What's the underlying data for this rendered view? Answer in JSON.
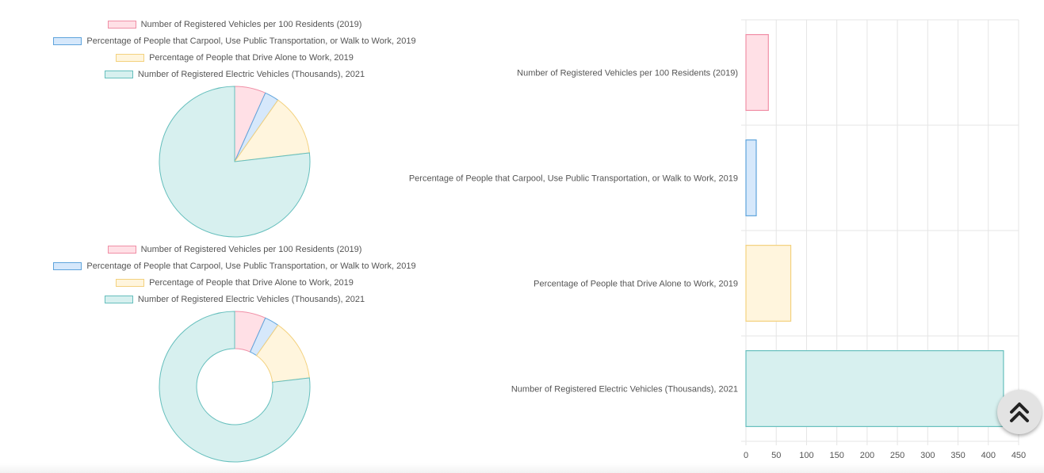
{
  "colors": {
    "series_fill": [
      "#ffe0e6",
      "#d6e8fb",
      "#fff5dd",
      "#d7f0ef"
    ],
    "series_border": [
      "#f08fa6",
      "#5fa4dc",
      "#f3d17e",
      "#66bfbd"
    ],
    "grid": "#e5e5e5",
    "text": "#555555"
  },
  "chart_data": [
    {
      "type": "pie",
      "title": "",
      "categories": [
        "Number of Registered Vehicles per 100 Residents (2019)",
        "Percentage of People that Carpool, Use Public Transportation, or Walk to Work, 2019",
        "Percentage of People that Drive Alone to Work, 2019",
        "Number of Registered Electric Vehicles (Thousands), 2021"
      ],
      "values": [
        37,
        17,
        74,
        425
      ],
      "legend": "top"
    },
    {
      "type": "doughnut",
      "title": "",
      "categories": [
        "Number of Registered Vehicles per 100 Residents (2019)",
        "Percentage of People that Carpool, Use Public Transportation, or Walk to Work, 2019",
        "Percentage of People that Drive Alone to Work, 2019",
        "Number of Registered Electric Vehicles (Thousands), 2021"
      ],
      "values": [
        37,
        17,
        74,
        425
      ],
      "legend": "top"
    },
    {
      "type": "bar",
      "orientation": "horizontal",
      "categories": [
        "Number of Registered Vehicles per 100 Residents (2019)",
        "Percentage of People that Carpool, Use Public Transportation, or Walk to Work, 2019",
        "Percentage of People that Drive Alone to Work, 2019",
        "Number of Registered Electric Vehicles (Thousands), 2021"
      ],
      "values": [
        37,
        17,
        74,
        425
      ],
      "xlim": [
        0,
        450
      ],
      "ticks": [
        "0",
        "50",
        "100",
        "150",
        "200",
        "250",
        "300",
        "350",
        "400",
        "450"
      ],
      "xlabel": "",
      "ylabel": "",
      "grid": true
    }
  ],
  "ui": {
    "scroll_top_icon": "double-chevron-up-icon"
  }
}
